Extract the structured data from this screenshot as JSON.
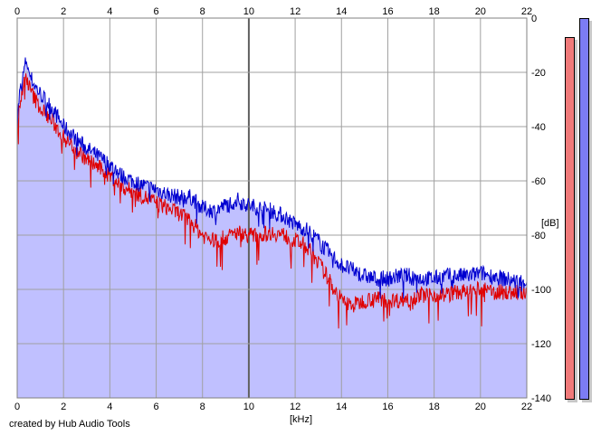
{
  "credit": "created by Hub Audio Tools",
  "chart_data": {
    "type": "line",
    "title": "",
    "xlabel": "[kHz]",
    "ylabel": "[dB]",
    "xlim": [
      0,
      22
    ],
    "ylim": [
      -140,
      0
    ],
    "x_ticks": [
      0,
      2,
      4,
      6,
      8,
      10,
      12,
      14,
      16,
      18,
      20,
      22
    ],
    "y_ticks": [
      0,
      -20,
      -40,
      -60,
      -80,
      -100,
      -120,
      -140
    ],
    "grid": true,
    "colors": {
      "fill": "#c0c0ff",
      "blue_line": "#0000d0",
      "red_line": "#e00000",
      "grid": "#a0a0a0",
      "major_grid": "#606060"
    },
    "series": [
      {
        "color": "#0000d0",
        "x": [
          0.0,
          0.1,
          0.2,
          0.3,
          0.4,
          0.5,
          0.7,
          1.0,
          1.5,
          2.0,
          2.5,
          3.0,
          3.5,
          4.0,
          4.5,
          5.0,
          5.5,
          6.0,
          6.5,
          7.0,
          7.5,
          8.0,
          8.5,
          9.0,
          9.5,
          10.0,
          10.5,
          11.0,
          11.5,
          12.0,
          12.5,
          13.0,
          13.5,
          14.0,
          14.5,
          15.0,
          15.5,
          16.0,
          16.5,
          17.0,
          17.5,
          18.0,
          18.5,
          19.0,
          19.5,
          20.0,
          20.5,
          21.0,
          21.5,
          22.0
        ],
        "values": [
          -38,
          -28,
          -24,
          -19,
          -15,
          -20,
          -24,
          -28,
          -33,
          -40,
          -44,
          -48,
          -51,
          -54,
          -58,
          -60,
          -62,
          -63,
          -65,
          -66,
          -66,
          -70,
          -71,
          -69,
          -67,
          -69,
          -70,
          -71,
          -73,
          -76,
          -78,
          -82,
          -87,
          -91,
          -93,
          -95,
          -96,
          -96,
          -95,
          -95,
          -96,
          -96,
          -95,
          -95,
          -95,
          -94,
          -95,
          -96,
          -97,
          -97
        ]
      },
      {
        "color": "#e00000",
        "x": [
          0.0,
          0.1,
          0.2,
          0.3,
          0.4,
          0.5,
          0.7,
          1.0,
          1.5,
          2.0,
          2.5,
          3.0,
          3.5,
          4.0,
          4.5,
          5.0,
          5.5,
          6.0,
          6.5,
          7.0,
          7.5,
          8.0,
          8.5,
          9.0,
          9.5,
          10.0,
          10.5,
          11.0,
          11.5,
          12.0,
          12.5,
          13.0,
          13.5,
          14.0,
          14.5,
          15.0,
          15.5,
          16.0,
          16.5,
          17.0,
          17.5,
          18.0,
          18.5,
          19.0,
          19.5,
          20.0,
          20.5,
          21.0,
          21.5,
          22.0
        ],
        "values": [
          -40,
          -32,
          -28,
          -24,
          -21,
          -25,
          -29,
          -33,
          -38,
          -44,
          -48,
          -52,
          -55,
          -58,
          -62,
          -64,
          -66,
          -68,
          -70,
          -72,
          -75,
          -80,
          -82,
          -81,
          -79,
          -80,
          -80,
          -79,
          -80,
          -82,
          -84,
          -90,
          -97,
          -104,
          -106,
          -104,
          -103,
          -104,
          -104,
          -103,
          -102,
          -102,
          -102,
          -101,
          -101,
          -100,
          -101,
          -101,
          -101,
          -102
        ]
      }
    ]
  }
}
